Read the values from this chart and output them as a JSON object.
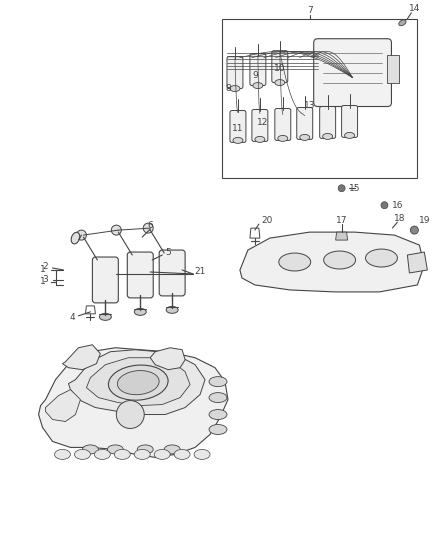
{
  "background_color": "#ffffff",
  "figure_width": 4.38,
  "figure_height": 5.33,
  "dpi": 100,
  "line_color": "#444444",
  "label_color": "#444444",
  "label_fontsize": 6.5
}
